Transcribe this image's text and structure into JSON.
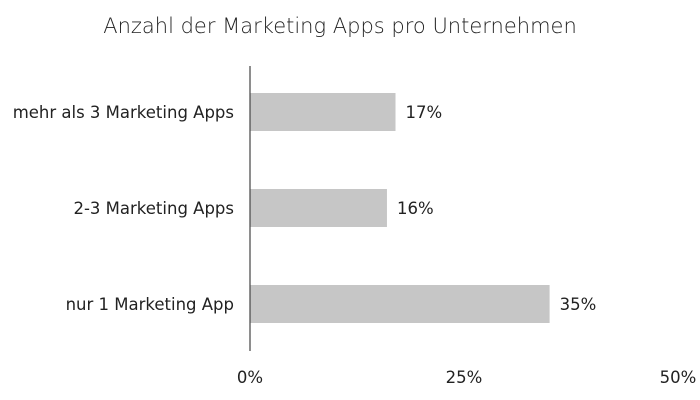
{
  "chart_data": {
    "type": "bar",
    "orientation": "horizontal",
    "title": "Anzahl der Marketing Apps pro Unternehmen",
    "categories": [
      "mehr als 3 Marketing Apps",
      "2-3 Marketing Apps",
      "nur 1 Marketing App"
    ],
    "values": [
      17,
      16,
      35
    ],
    "value_labels": [
      "17%",
      "16%",
      "35%"
    ],
    "xlim": [
      0,
      50
    ],
    "xticks": [
      0,
      25,
      50
    ],
    "xtick_labels": [
      "0%",
      "25%",
      "50%"
    ],
    "xlabel": "",
    "ylabel": "",
    "grid": false,
    "legend": "none",
    "bar_color": "#c6c6c6"
  }
}
